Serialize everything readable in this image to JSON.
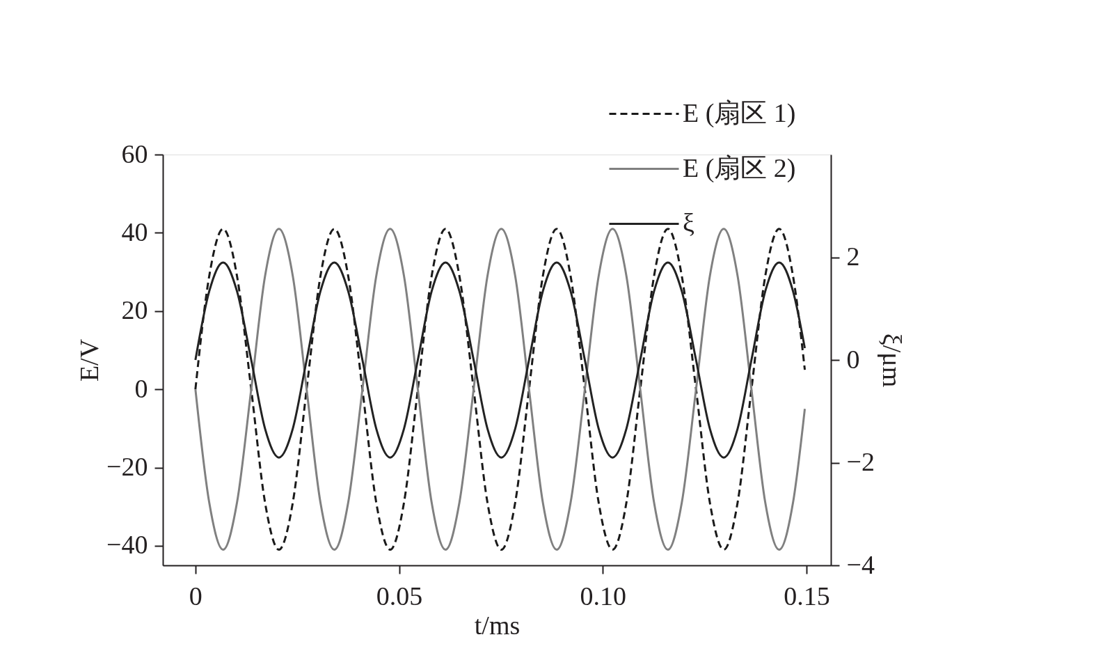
{
  "chart_data": {
    "type": "line",
    "xlabel": "t/ms",
    "ylabel": "E/V",
    "y2label": "ξ/μm",
    "x": [
      0,
      0.0034,
      0.0068,
      0.0102,
      0.0137,
      0.0171,
      0.0205,
      0.0239,
      0.0273,
      0.0307,
      0.0341,
      0.0375,
      0.041,
      0.0444,
      0.0478,
      0.0512,
      0.0546,
      0.058,
      0.0614,
      0.0648,
      0.0683,
      0.0717,
      0.0751,
      0.0785,
      0.0819,
      0.0853,
      0.0887,
      0.0921,
      0.0956,
      0.099,
      0.1024,
      0.1058,
      0.1092,
      0.1126,
      0.116,
      0.1194,
      0.1229,
      0.1263,
      0.1297,
      0.1331,
      0.1365,
      0.1399,
      0.1433,
      0.1467,
      0.1496
    ],
    "series": [
      {
        "name": "E (扇区 1)",
        "color": "#1a1a1a",
        "line_style": "dashed",
        "values": [
          0,
          29,
          41,
          29,
          0,
          -29,
          -41,
          -29,
          0,
          29,
          41,
          29,
          0,
          -29,
          -41,
          -29,
          0,
          29,
          41,
          29,
          0,
          -29,
          -41,
          -29,
          0,
          29,
          41,
          29,
          0,
          -29,
          -41,
          -29,
          0,
          29,
          41,
          29,
          0,
          -29,
          -41,
          -29,
          0,
          29,
          41,
          29,
          5
        ]
      },
      {
        "name": "E (扇区 2)",
        "color": "#808080",
        "line_style": "solid",
        "values": [
          0,
          -29,
          -41,
          -29,
          0,
          29,
          41,
          29,
          0,
          -29,
          -41,
          -29,
          0,
          29,
          41,
          29,
          0,
          -29,
          -41,
          -29,
          0,
          29,
          41,
          29,
          0,
          -29,
          -41,
          -29,
          0,
          29,
          41,
          29,
          0,
          -29,
          -41,
          -29,
          0,
          29,
          41,
          29,
          0,
          -29,
          -41,
          -29,
          -5
        ]
      },
      {
        "name": "ξ",
        "color": "#222222",
        "line_style": "solid",
        "axis": "y2",
        "values": [
          0,
          1.34,
          1.9,
          1.34,
          0,
          -1.34,
          -1.9,
          -1.34,
          0,
          1.34,
          1.9,
          1.34,
          0,
          -1.34,
          -1.9,
          -1.34,
          0,
          1.34,
          1.9,
          1.34,
          0,
          -1.34,
          -1.9,
          -1.34,
          0,
          1.34,
          1.9,
          1.34,
          0,
          -1.34,
          -1.9,
          -1.34,
          0,
          1.34,
          1.9,
          1.34,
          0,
          -1.34,
          -1.9,
          -1.34,
          0,
          1.34,
          1.9,
          1.34,
          0.23
        ]
      }
    ],
    "xlim": [
      -0.008,
      0.156
    ],
    "xticks": [
      0,
      0.05,
      {
        "value": 0.1,
        "label": "0.10"
      },
      0.15
    ],
    "ylim": [
      -45,
      60
    ],
    "yticks": [
      -40,
      -20,
      0,
      20,
      40,
      60
    ],
    "y2lim": [
      -4,
      4
    ],
    "y2ticks": [
      -4,
      -2,
      0,
      2
    ],
    "grid": false,
    "legend": "top right",
    "marker": "none"
  }
}
